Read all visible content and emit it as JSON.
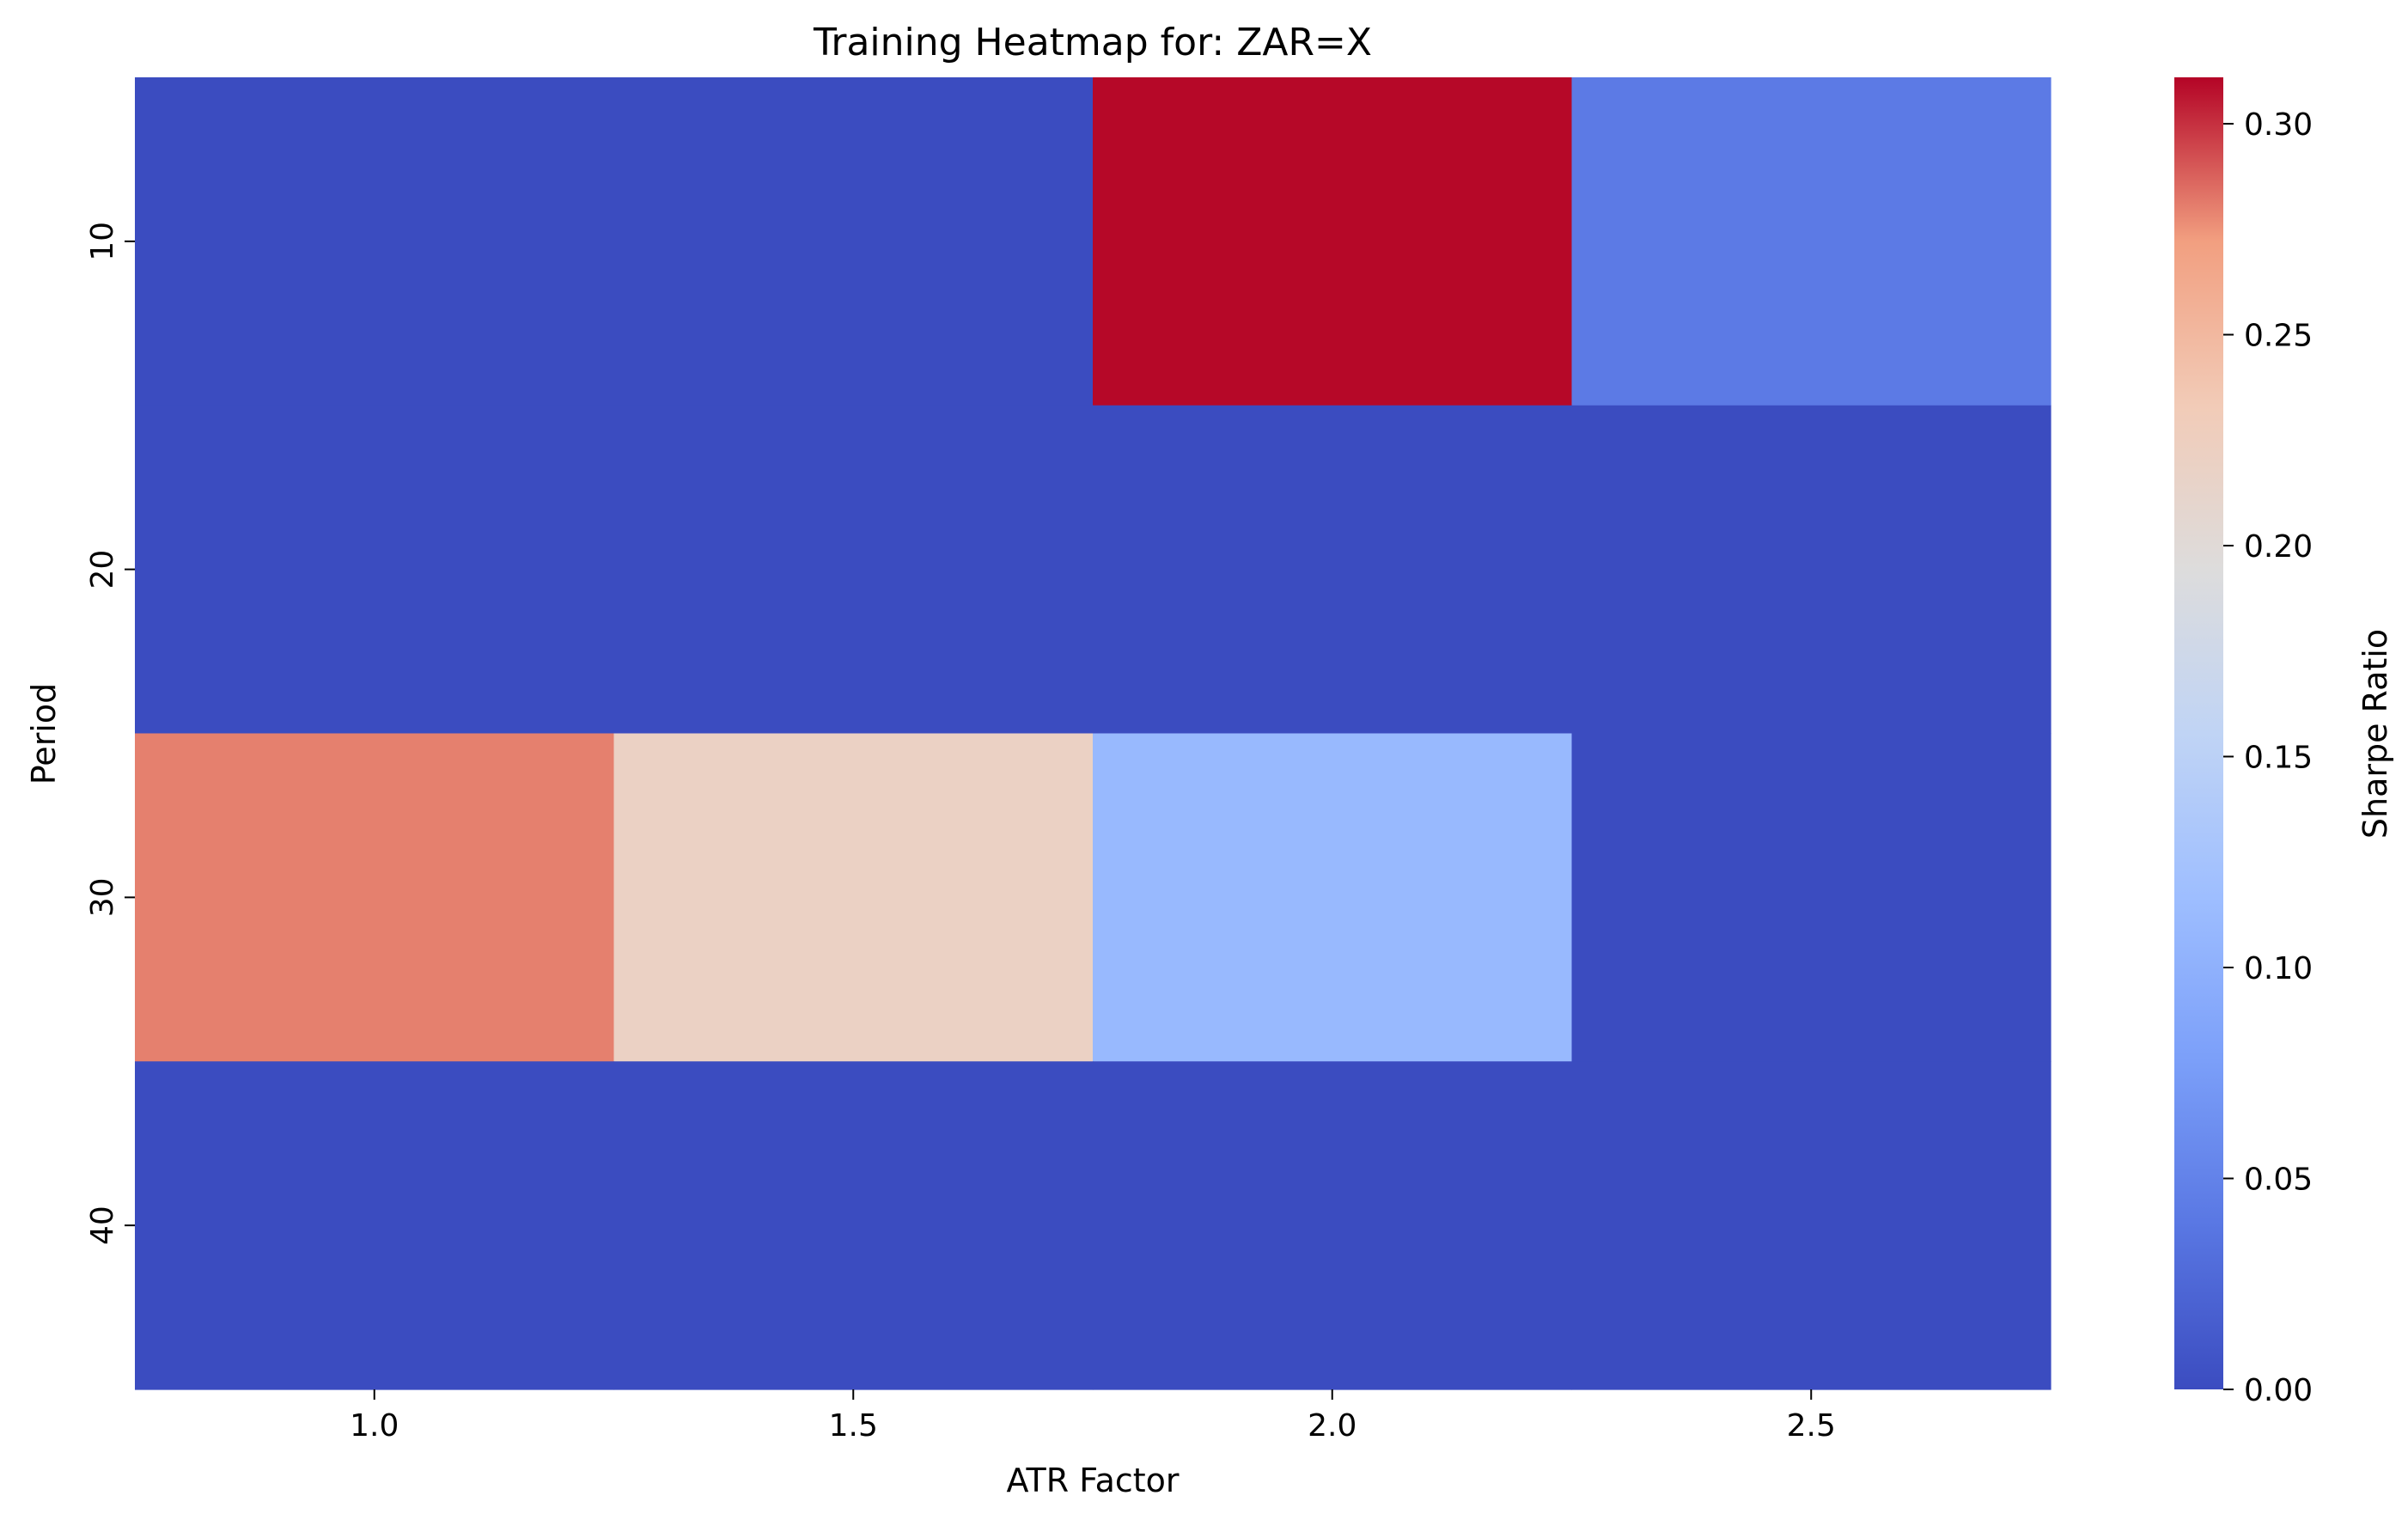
{
  "chart_data": {
    "type": "heatmap",
    "title": "Training Heatmap for: ZAR=X",
    "xlabel": "ATR Factor",
    "ylabel": "Period",
    "x": [
      "1.0",
      "1.5",
      "2.0",
      "2.5"
    ],
    "y": [
      "10",
      "20",
      "30",
      "40"
    ],
    "values": [
      [
        0.0,
        0.0,
        0.31,
        0.042
      ],
      [
        0.0,
        0.0,
        0.0,
        0.0
      ],
      [
        0.28,
        0.22,
        0.11,
        0.0
      ],
      [
        0.0,
        0.0,
        0.0,
        0.0
      ]
    ],
    "colorbar": {
      "label": "Sharpe Ratio",
      "min": 0.0,
      "max": 0.311,
      "ticks": [
        "0.00",
        "0.05",
        "0.10",
        "0.15",
        "0.20",
        "0.25",
        "0.30"
      ],
      "colormap": "coolwarm"
    },
    "grid": false
  }
}
